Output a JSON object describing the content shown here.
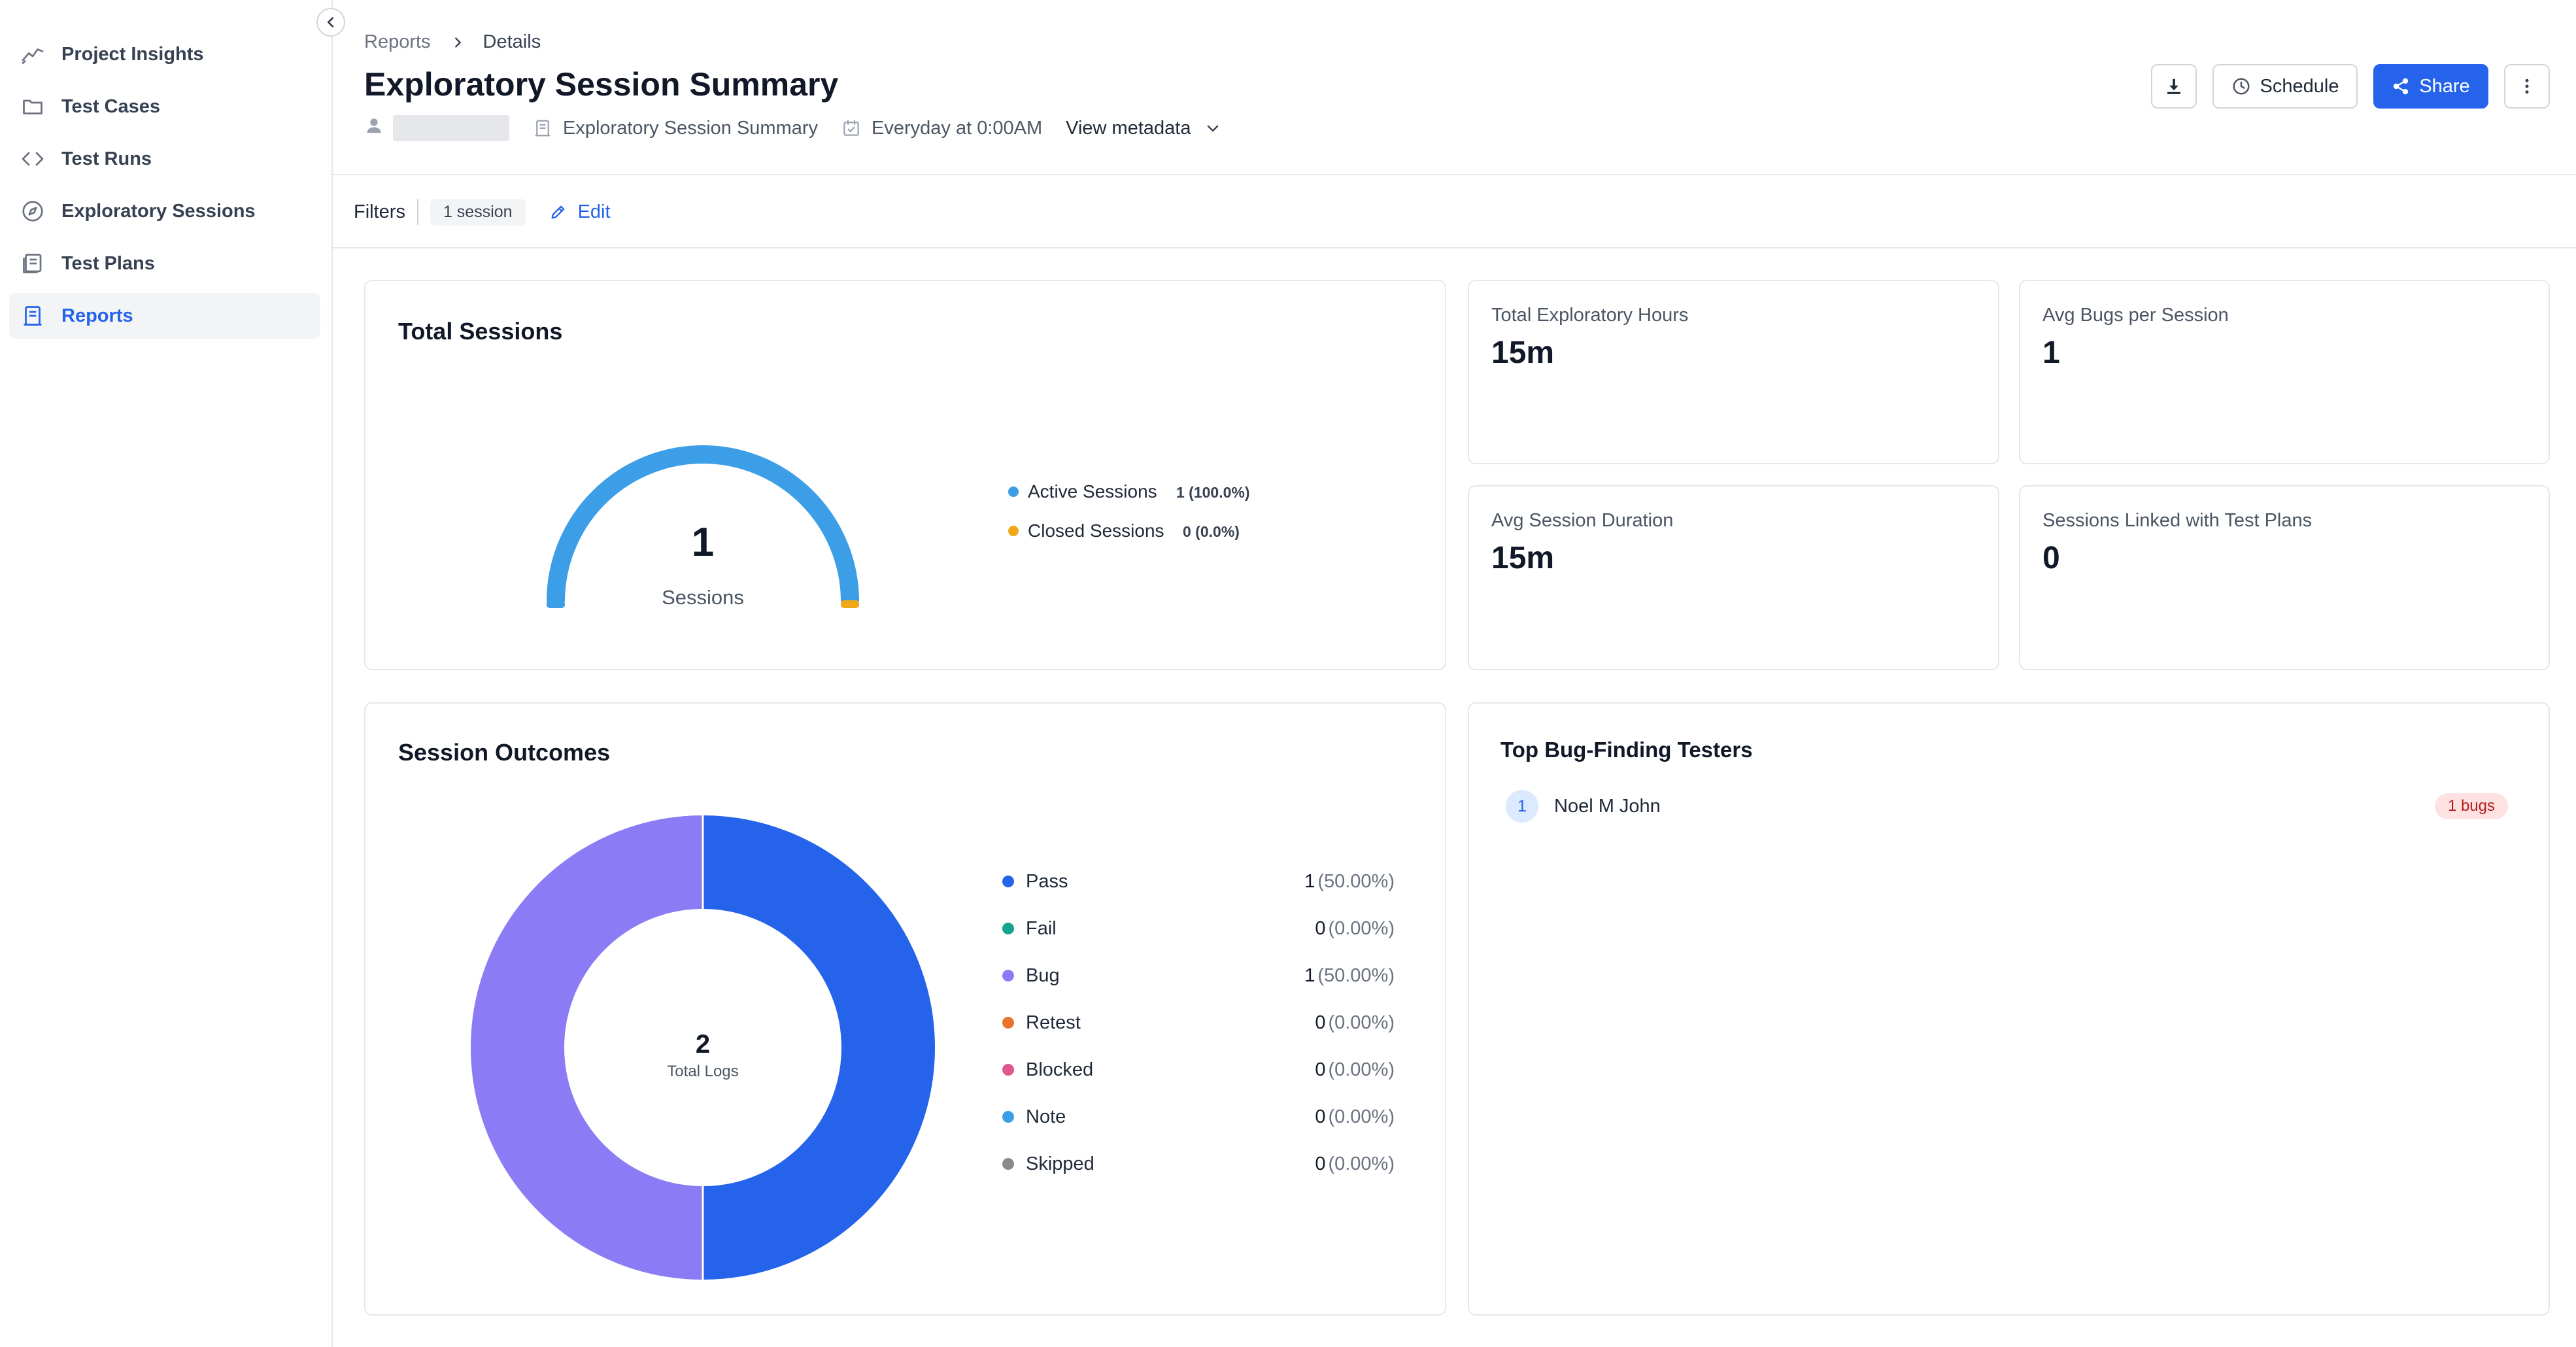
{
  "sidebar": {
    "items": [
      {
        "label": "Project Insights",
        "icon": "trend-line-icon",
        "active": false
      },
      {
        "label": "Test Cases",
        "icon": "folder-icon",
        "active": false
      },
      {
        "label": "Test Runs",
        "icon": "code-brackets-icon",
        "active": false
      },
      {
        "label": "Exploratory Sessions",
        "icon": "compass-icon",
        "active": false
      },
      {
        "label": "Test Plans",
        "icon": "document-stack-icon",
        "active": false
      },
      {
        "label": "Reports",
        "icon": "report-icon",
        "active": true
      }
    ]
  },
  "breadcrumb": {
    "parent": "Reports",
    "current": "Details"
  },
  "header": {
    "title": "Exploratory Session Summary",
    "meta": {
      "report_type": "Exploratory Session Summary",
      "schedule": "Everyday at 0:00AM",
      "view_metadata": "View metadata"
    },
    "actions": {
      "schedule_label": "Schedule",
      "share_label": "Share"
    }
  },
  "filters": {
    "label": "Filters",
    "chip": "1 session",
    "edit_label": "Edit"
  },
  "total_sessions": {
    "title": "Total Sessions",
    "value": "1",
    "caption": "Sessions",
    "legend": [
      {
        "label": "Active Sessions",
        "value": "1 (100.0%)",
        "color": "#3b9ee6"
      },
      {
        "label": "Closed Sessions",
        "value": "0 (0.0%)",
        "color": "#f0a818"
      }
    ]
  },
  "stats": [
    {
      "label": "Total Exploratory Hours",
      "value": "15m"
    },
    {
      "label": "Avg Bugs per Session",
      "value": "1"
    },
    {
      "label": "Avg Session Duration",
      "value": "15m"
    },
    {
      "label": "Sessions Linked with Test Plans",
      "value": "0"
    }
  ],
  "session_outcomes": {
    "title": "Session Outcomes",
    "center_value": "2",
    "center_label": "Total Logs",
    "rows": [
      {
        "label": "Pass",
        "count": "1",
        "pct": "(50.00%)",
        "color": "#2563eb"
      },
      {
        "label": "Fail",
        "count": "0",
        "pct": "(0.00%)",
        "color": "#14a38b"
      },
      {
        "label": "Bug",
        "count": "1",
        "pct": "(50.00%)",
        "color": "#8b7cf6"
      },
      {
        "label": "Retest",
        "count": "0",
        "pct": "(0.00%)",
        "color": "#e8732a"
      },
      {
        "label": "Blocked",
        "count": "0",
        "pct": "(0.00%)",
        "color": "#e0578c"
      },
      {
        "label": "Note",
        "count": "0",
        "pct": "(0.00%)",
        "color": "#3b9ee6"
      },
      {
        "label": "Skipped",
        "count": "0",
        "pct": "(0.00%)",
        "color": "#8a8a8a"
      }
    ]
  },
  "top_testers": {
    "title": "Top Bug-Finding Testers",
    "rows": [
      {
        "rank": "1",
        "name": "Noel M John",
        "bugs": "1 bugs"
      }
    ]
  },
  "chart_data": [
    {
      "type": "pie",
      "variant": "semi-gauge",
      "title": "Total Sessions",
      "categories": [
        "Active Sessions",
        "Closed Sessions"
      ],
      "values": [
        1,
        0
      ],
      "colors": [
        "#3b9ee6",
        "#f0a818"
      ]
    },
    {
      "type": "pie",
      "variant": "donut",
      "title": "Session Outcomes",
      "categories": [
        "Pass",
        "Fail",
        "Bug",
        "Retest",
        "Blocked",
        "Note",
        "Skipped"
      ],
      "values": [
        1,
        0,
        1,
        0,
        0,
        0,
        0
      ],
      "colors": [
        "#2563eb",
        "#14a38b",
        "#8b7cf6",
        "#e8732a",
        "#e0578c",
        "#3b9ee6",
        "#8a8a8a"
      ]
    }
  ]
}
